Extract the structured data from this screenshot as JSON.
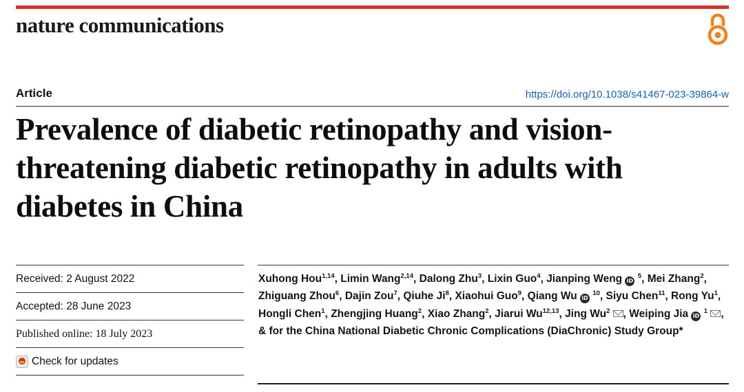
{
  "journal": {
    "name": "nature communications"
  },
  "icons": {
    "open_access": "open-access-icon",
    "check_updates": "check-updates-icon",
    "orcid": "orcid-icon",
    "email": "mail-icon"
  },
  "colors": {
    "brand_red": "#d9302b",
    "open_access_orange": "#f0821e",
    "link_blue": "#1a5fa8"
  },
  "article": {
    "type": "Article",
    "doi": "https://doi.org/10.1038/s41467-023-39864-w",
    "title": "Prevalence of diabetic retinopathy and vision-threatening diabetic retinopathy in adults with diabetes in China"
  },
  "meta": {
    "received": "Received: 2 August 2022",
    "accepted": "Accepted: 28 June 2023",
    "published": "Published online: 18 July 2023",
    "check_updates": "Check for updates"
  },
  "authors": [
    {
      "name": "Xuhong Hou",
      "aff": "1,14"
    },
    {
      "name": "Limin Wang",
      "aff": "2,14"
    },
    {
      "name": "Dalong Zhu",
      "aff": "3"
    },
    {
      "name": "Lixin Guo",
      "aff": "4"
    },
    {
      "name": "Jianping Weng",
      "aff": "5",
      "orcid": true
    },
    {
      "name": "Mei Zhang",
      "aff": "2"
    },
    {
      "name": "Zhiguang Zhou",
      "aff": "6"
    },
    {
      "name": "Dajin Zou",
      "aff": "7"
    },
    {
      "name": "Qiuhe Ji",
      "aff": "8"
    },
    {
      "name": "Xiaohui Guo",
      "aff": "9"
    },
    {
      "name": "Qiang Wu",
      "aff": "10",
      "orcid": true
    },
    {
      "name": "Siyu Chen",
      "aff": "11"
    },
    {
      "name": "Rong Yu",
      "aff": "1"
    },
    {
      "name": "Hongli Chen",
      "aff": "1"
    },
    {
      "name": "Zhengjing Huang",
      "aff": "2"
    },
    {
      "name": "Xiao Zhang",
      "aff": "2"
    },
    {
      "name": "Jiarui Wu",
      "aff": "12,13"
    },
    {
      "name": "Jing Wu",
      "aff": "2",
      "email": true
    },
    {
      "name": "Weiping Jia",
      "aff": "1",
      "orcid": true,
      "email": true
    }
  ],
  "author_tail": "& for the China National Diabetic Chronic Complications (DiaChronic) Study Group*"
}
